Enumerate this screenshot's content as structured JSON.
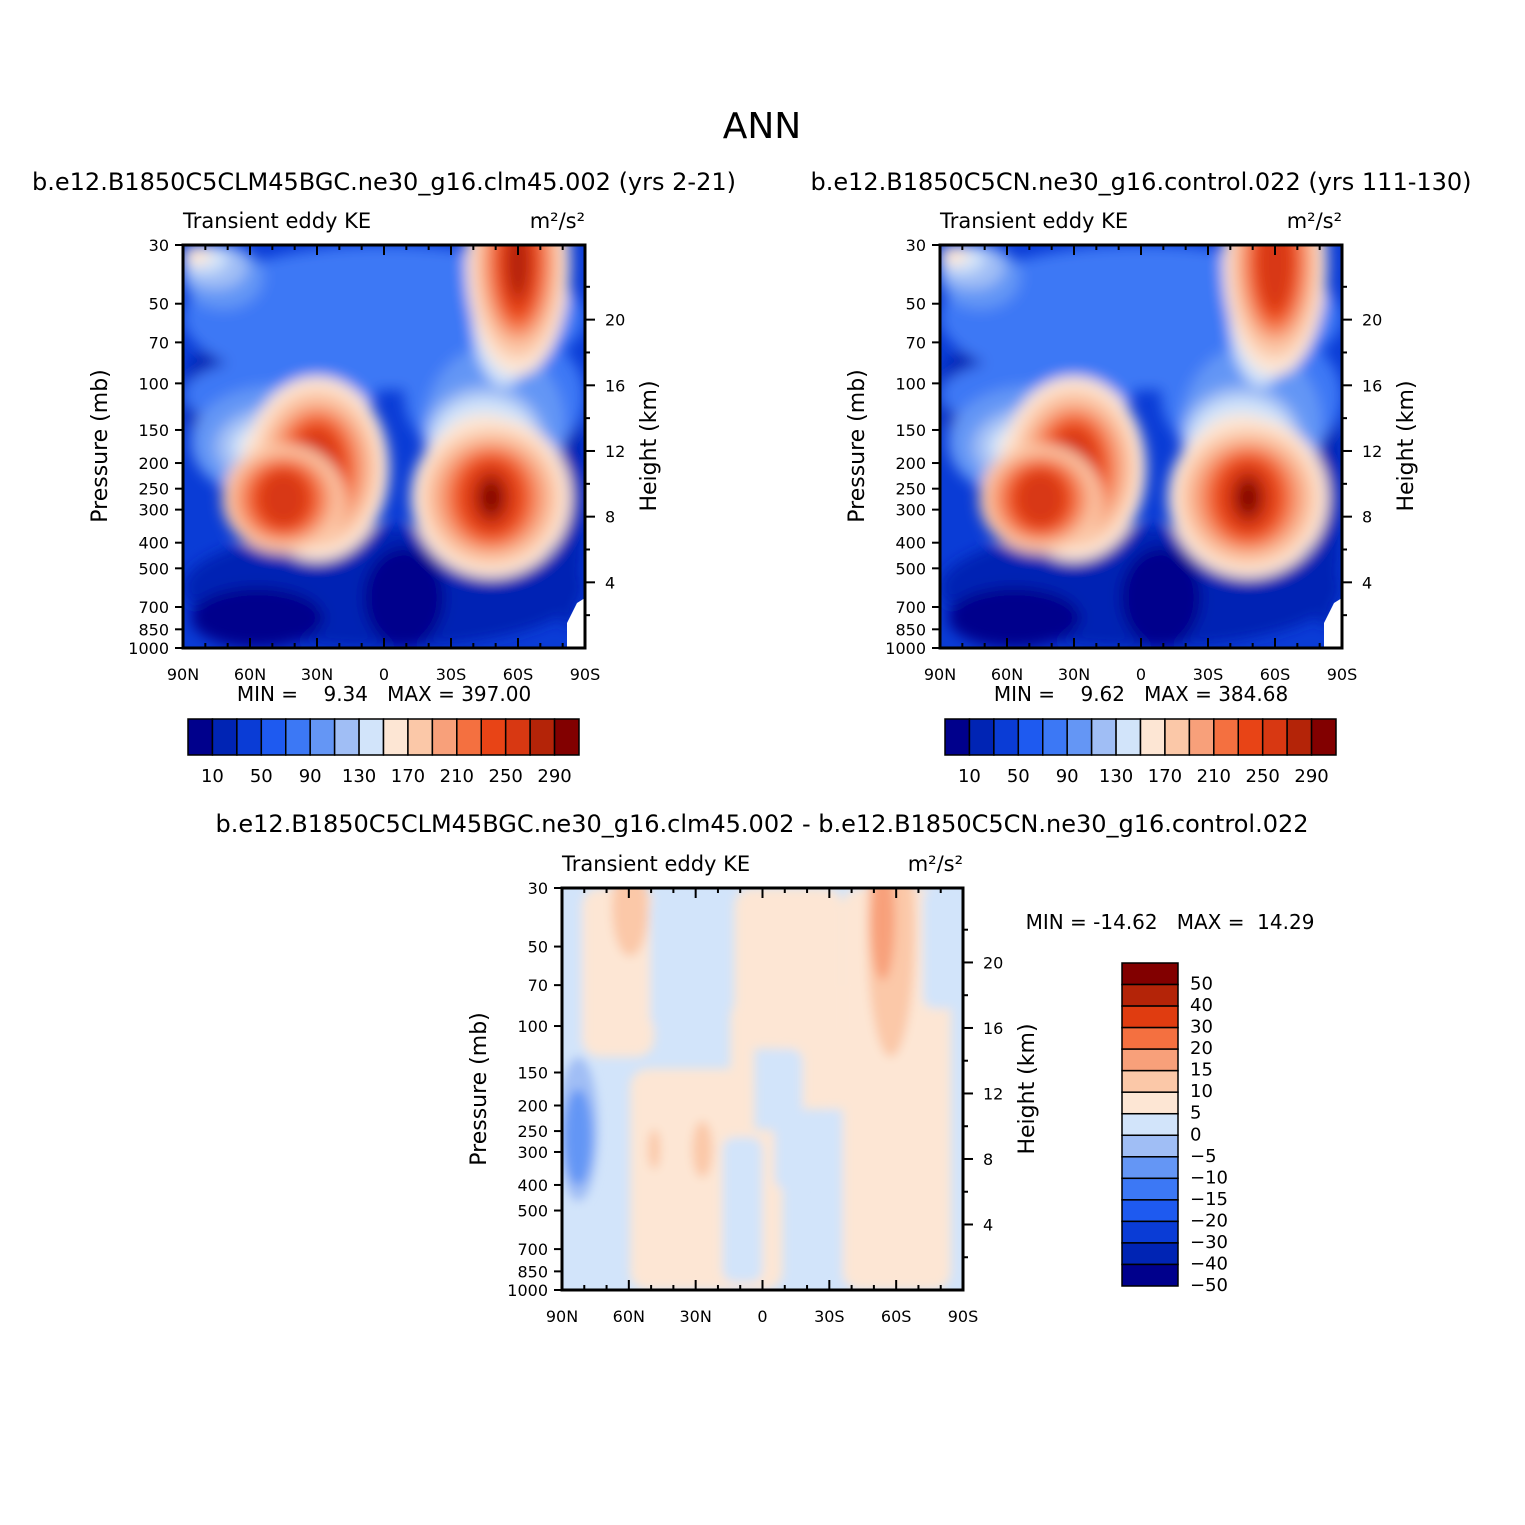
{
  "page": {
    "title": "ANN",
    "panel_subtitle": "Transient eddy KE",
    "panel_units": "m²/s²",
    "left_axis_label": "Pressure (mb)",
    "right_axis_label": "Height (km)"
  },
  "panels": [
    {
      "id": "p1",
      "run_title": "b.e12.B1850C5CLM45BGC.ne30_g16.clm45.002 (yrs 2-21)",
      "minmax": "MIN =    9.34   MAX = 397.00",
      "colorbar_labels": [
        "10",
        "50",
        "90",
        "130",
        "170",
        "210",
        "250",
        "290"
      ]
    },
    {
      "id": "p2",
      "run_title": "b.e12.B1850C5CN.ne30_g16.control.022 (yrs 111-130)",
      "minmax": "MIN =    9.62   MAX = 384.68",
      "colorbar_labels": [
        "10",
        "50",
        "90",
        "130",
        "170",
        "210",
        "250",
        "290"
      ]
    },
    {
      "id": "p3",
      "run_title": "b.e12.B1850C5CLM45BGC.ne30_g16.clm45.002 - b.e12.B1850C5CN.ne30_g16.control.022",
      "minmax": "MIN = -14.62   MAX =  14.29",
      "colorbar_labels": [
        "50",
        "40",
        "30",
        "20",
        "15",
        "10",
        "5",
        "0",
        "-5",
        "-10",
        "-15",
        "-20",
        "-30",
        "-40",
        "-50"
      ]
    }
  ],
  "palettes": {
    "main": [
      "#00008c",
      "#0024b4",
      "#0a3cd6",
      "#1e5af0",
      "#3c78f5",
      "#6496f5",
      "#a0bef5",
      "#d2e4fa",
      "#fde6d4",
      "#fbc8a8",
      "#f8a07a",
      "#f47040",
      "#e84416",
      "#d83812",
      "#b42408",
      "#820000"
    ],
    "diff": [
      "#820000",
      "#b42408",
      "#e03c10",
      "#f47040",
      "#f8a07a",
      "#fbc8a8",
      "#fde6d4",
      "#d2e4fa",
      "#a0bef5",
      "#6496f5",
      "#3c78f5",
      "#1e5af0",
      "#0a3cd6",
      "#0024b4",
      "#00008c"
    ]
  },
  "chart_data": {
    "type": "heatmap",
    "title": "ANN",
    "variable": "Transient eddy KE",
    "units": "m²/s²",
    "x_axis": {
      "ticks": [
        "90N",
        "60N",
        "30N",
        "0",
        "30S",
        "60S",
        "90S"
      ],
      "range": [
        90,
        -90
      ]
    },
    "y_axis_left": {
      "label": "Pressure (mb)",
      "ticks": [
        30,
        50,
        70,
        100,
        150,
        200,
        250,
        300,
        400,
        500,
        700,
        850,
        1000
      ],
      "scale": "log",
      "range": [
        1000,
        30
      ]
    },
    "y_axis_right": {
      "label": "Height (km)",
      "ticks": [
        4,
        8,
        12,
        16,
        20
      ]
    },
    "fields": [
      {
        "name": "b.e12.B1850C5CLM45BGC.ne30_g16.clm45.002",
        "min": 9.34,
        "max": 397.0,
        "features": [
          {
            "lat": -48,
            "p": 270,
            "value": 390
          },
          {
            "lat": 30,
            "p": 210,
            "value": 300
          },
          {
            "lat": -60,
            "p": 35,
            "value": 330
          }
        ]
      },
      {
        "name": "b.e12.B1850C5CN.ne30_g16.control.022",
        "min": 9.62,
        "max": 384.68,
        "features": [
          {
            "lat": -48,
            "p": 270,
            "value": 380
          },
          {
            "lat": 30,
            "p": 210,
            "value": 295
          },
          {
            "lat": -60,
            "p": 35,
            "value": 320
          }
        ]
      },
      {
        "name": "difference",
        "min": -14.62,
        "max": 14.29
      }
    ],
    "contour_levels_main": [
      10,
      30,
      50,
      70,
      90,
      110,
      130,
      150,
      170,
      190,
      210,
      230,
      250,
      270,
      290
    ],
    "contour_levels_diff": [
      -50,
      -40,
      -30,
      -20,
      -15,
      -10,
      -5,
      0,
      5,
      10,
      15,
      20,
      30,
      40,
      50
    ]
  }
}
